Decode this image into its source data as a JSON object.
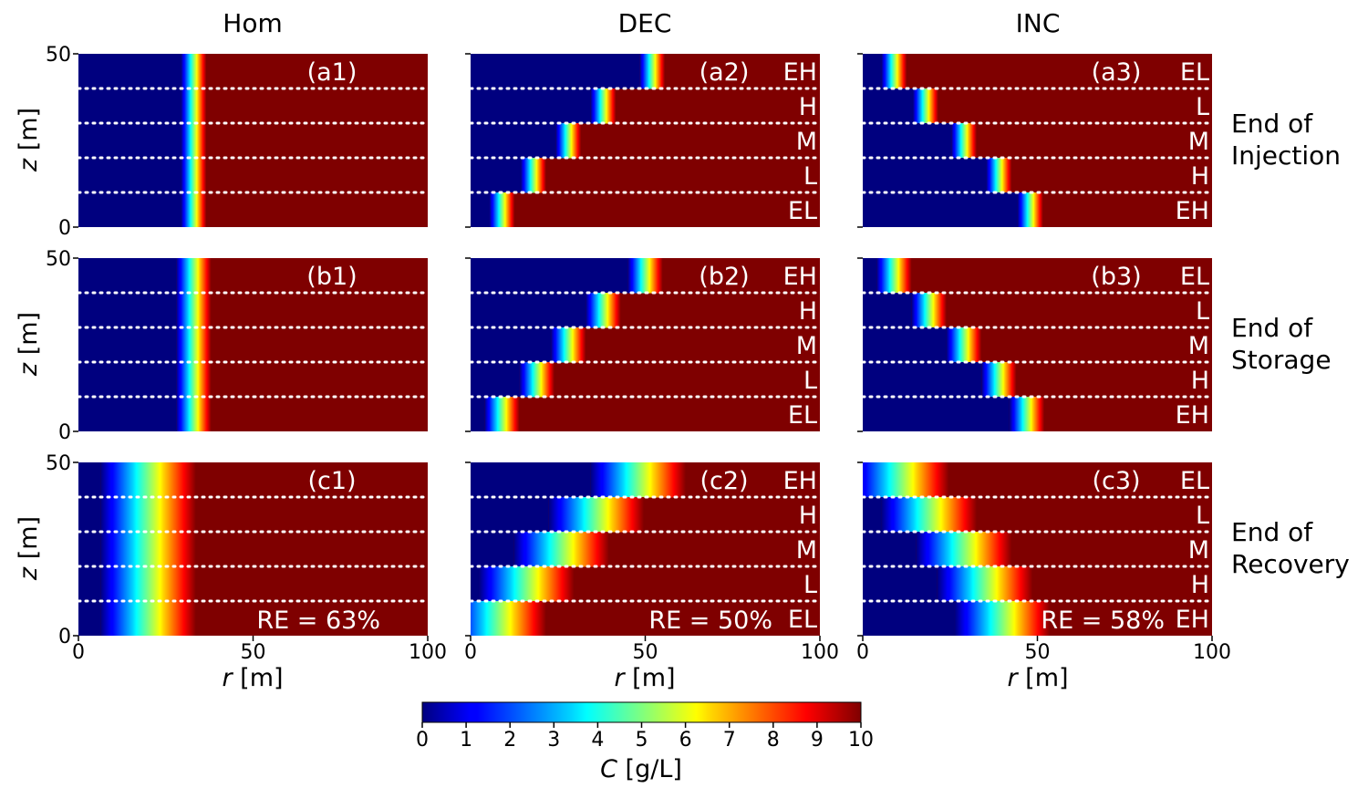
{
  "chart_data": {
    "type": "heatmap",
    "colormap": "jet",
    "column_titles": [
      "Hom",
      "DEC",
      "INC"
    ],
    "row_titles": [
      [
        "End of",
        "Injection"
      ],
      [
        "End of",
        "Storage"
      ],
      [
        "End of",
        "Recovery"
      ]
    ],
    "x_axis": {
      "symbol": "r",
      "unit": "[m]",
      "range": [
        0,
        100
      ],
      "ticks": [
        "0",
        "50",
        "100"
      ]
    },
    "y_axis": {
      "symbol": "z",
      "unit": "[m]",
      "range": [
        0,
        50
      ],
      "ticks": [
        "0",
        "50"
      ]
    },
    "layer_boundaries_z": [
      10,
      20,
      30,
      40
    ],
    "layer_labels_top_to_bottom": {
      "Hom": [],
      "DEC": [
        "EH",
        "H",
        "M",
        "L",
        "EL"
      ],
      "INC": [
        "EL",
        "L",
        "M",
        "H",
        "EH"
      ]
    },
    "colorbar": {
      "symbol": "C",
      "unit": "[g/L]",
      "range": [
        0,
        10
      ],
      "ticks": [
        "0",
        "1",
        "2",
        "3",
        "4",
        "5",
        "6",
        "7",
        "8",
        "9",
        "10"
      ]
    },
    "panels": [
      {
        "id": "(a1)",
        "row": 0,
        "col": 0,
        "front_r": [
          33,
          33,
          33,
          33,
          33
        ],
        "width": 1.6,
        "re": ""
      },
      {
        "id": "(a2)",
        "row": 0,
        "col": 1,
        "front_r": [
          52,
          38,
          28,
          18,
          9
        ],
        "width": 1.6,
        "re": ""
      },
      {
        "id": "(a3)",
        "row": 0,
        "col": 2,
        "front_r": [
          9,
          18,
          29,
          39,
          48
        ],
        "width": 1.6,
        "re": ""
      },
      {
        "id": "(b1)",
        "row": 1,
        "col": 0,
        "front_r": [
          33,
          33,
          33,
          33,
          33
        ],
        "width": 2.2,
        "re": ""
      },
      {
        "id": "(b2)",
        "row": 1,
        "col": 1,
        "front_r": [
          50,
          38,
          28,
          19,
          9
        ],
        "width": 2.2,
        "re": ""
      },
      {
        "id": "(b3)",
        "row": 1,
        "col": 2,
        "front_r": [
          9,
          19,
          29,
          39,
          47
        ],
        "width": 2.2,
        "re": ""
      },
      {
        "id": "(c1)",
        "row": 2,
        "col": 0,
        "front_r": [
          20,
          20,
          20,
          20,
          20
        ],
        "width": 6,
        "re": "RE = 63%"
      },
      {
        "id": "(c2)",
        "row": 2,
        "col": 1,
        "front_r": [
          48,
          36,
          26,
          16,
          8
        ],
        "width": 6,
        "re": "RE = 50%"
      },
      {
        "id": "(c3)",
        "row": 2,
        "col": 2,
        "front_r": [
          11,
          19,
          29,
          35,
          40
        ],
        "width": 6,
        "re": "RE = 58%"
      }
    ]
  }
}
